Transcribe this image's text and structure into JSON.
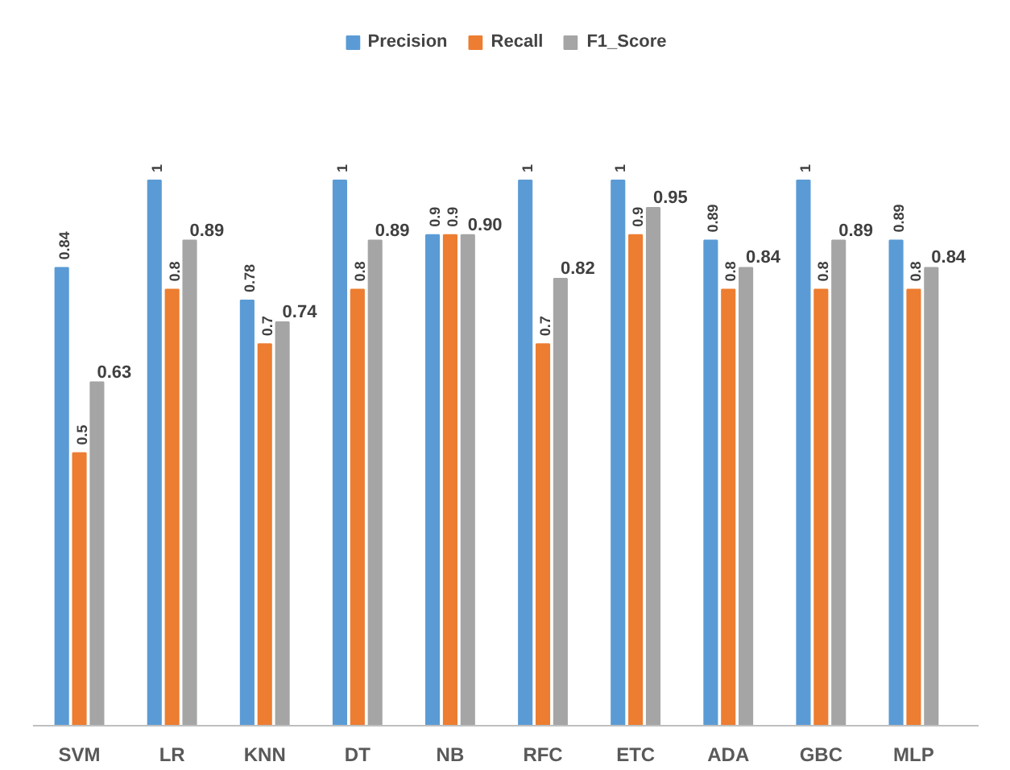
{
  "chart_data": {
    "type": "bar",
    "categories": [
      "SVM",
      "LR",
      "KNN",
      "DT",
      "NB",
      "RFC",
      "ETC",
      "ADA",
      "GBC",
      "MLP"
    ],
    "series": [
      {
        "name": "Precision",
        "color": "#5b9bd5",
        "values": [
          0.84,
          1,
          0.78,
          1,
          0.9,
          1,
          1,
          0.89,
          1,
          0.89
        ],
        "value_labels": [
          "0.84",
          "1",
          "0.78",
          "1",
          "0.9",
          "1",
          "1",
          "0.89",
          "1",
          "0.89"
        ]
      },
      {
        "name": "Recall",
        "color": "#ed7d31",
        "values": [
          0.5,
          0.8,
          0.7,
          0.8,
          0.9,
          0.7,
          0.9,
          0.8,
          0.8,
          0.8
        ],
        "value_labels": [
          "0.5",
          "0.8",
          "0.7",
          "0.8",
          "0.9",
          "0.7",
          "0.9",
          "0.8",
          "0.8",
          "0.8"
        ]
      },
      {
        "name": "F1_Score",
        "color": "#a5a5a5",
        "values": [
          0.63,
          0.89,
          0.74,
          0.89,
          0.9,
          0.82,
          0.95,
          0.84,
          0.89,
          0.84
        ],
        "value_labels": [
          "0.63",
          "0.89",
          "0.74",
          "0.89",
          "0.90",
          "0.82",
          "0.95",
          "0.84",
          "0.89",
          "0.84"
        ]
      }
    ],
    "legend": "top",
    "grid": false,
    "tick_labels": "x"
  }
}
